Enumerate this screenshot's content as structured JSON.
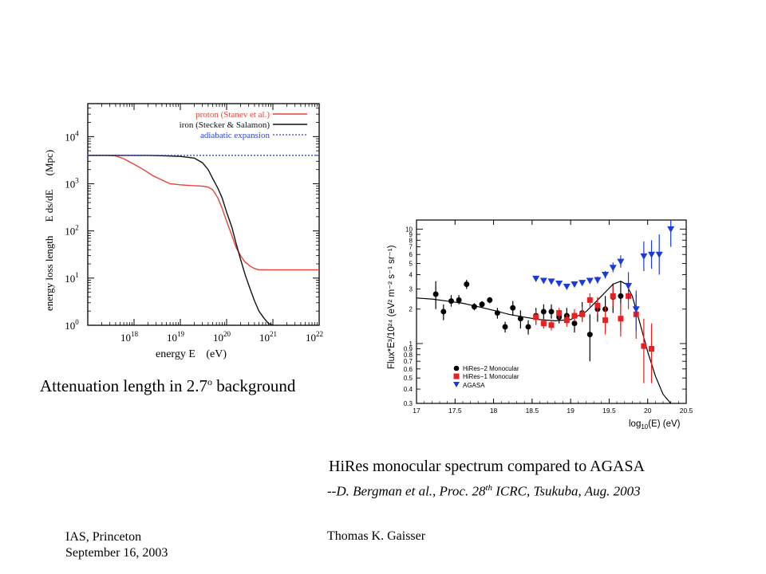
{
  "slide": {
    "caption_left_main": "Attenuation length in 2.7",
    "caption_left_sup": "o",
    "caption_left_tail": " background",
    "caption_right_title": "HiRes monocular spectrum compared to AGASA",
    "caption_right_cite_prefix": "--",
    "caption_right_cite_a": "D. Bergman et al., Proc. 28",
    "caption_right_cite_sup": "th",
    "caption_right_cite_b": " ICRC, Tsukuba, Aug. 2003",
    "footer_left_line1": "IAS, Princeton",
    "footer_left_line2": "September 16, 2003",
    "footer_center": "Thomas K. Gaisser"
  },
  "chart_data": [
    {
      "type": "line",
      "xlabel_main": "energy E",
      "xlabel_unit": "(eV)",
      "ylabel_main": "energy loss length",
      "ylabel_mid": "E ds/dE",
      "ylabel_unit": "(Mpc)",
      "xscale": "log",
      "yscale": "log",
      "xlim": [
        1e+17,
        1e+22
      ],
      "ylim": [
        1,
        50000
      ],
      "x_ticks": [
        {
          "v": 1e+18,
          "b": "10",
          "e": "18"
        },
        {
          "v": 1e+19,
          "b": "10",
          "e": "19"
        },
        {
          "v": 1e+20,
          "b": "10",
          "e": "20"
        },
        {
          "v": 1e+21,
          "b": "10",
          "e": "21"
        },
        {
          "v": 1e+22,
          "b": "10",
          "e": "22"
        }
      ],
      "y_ticks": [
        {
          "v": 1,
          "b": "10",
          "e": "0"
        },
        {
          "v": 10,
          "b": "10",
          "e": "1"
        },
        {
          "v": 100,
          "b": "10",
          "e": "2"
        },
        {
          "v": 1000,
          "b": "10",
          "e": "3"
        },
        {
          "v": 10000,
          "b": "10",
          "e": "4"
        }
      ],
      "legend_position": "top-right",
      "series": [
        {
          "name": "proton (Stanev et al.)",
          "color": "#e8413a",
          "dash": false,
          "x": [
            1e+17,
            2.5e+17,
            4e+17,
            6e+17,
            1e+18,
            1.6e+18,
            2.5e+18,
            4e+18,
            6e+18,
            1e+19,
            1.6e+19,
            2.5e+19,
            3.3e+19,
            4e+19,
            5e+19,
            6.5e+19,
            8e+19,
            1e+20,
            1.3e+20,
            1.6e+20,
            2e+20,
            2.5e+20,
            3.2e+20,
            4e+20,
            5e+20,
            7e+20,
            1e+21,
            2e+21,
            5e+21,
            1e+22
          ],
          "y": [
            4000,
            4000,
            3900,
            3400,
            2600,
            2000,
            1500,
            1200,
            1000,
            950,
            920,
            900,
            880,
            850,
            750,
            500,
            300,
            160,
            80,
            45,
            30,
            22,
            18,
            16,
            15,
            15,
            15,
            15,
            15,
            15
          ]
        },
        {
          "name": "iron (Stecker & Salamon)",
          "color": "#111111",
          "dash": false,
          "x": [
            1e+17,
            2e+17,
            5e+17,
            1e+18,
            2e+18,
            5e+18,
            1e+19,
            2e+19,
            3e+19,
            4e+19,
            5e+19,
            6.5e+19,
            8e+19,
            1e+20,
            1.3e+20,
            1.6e+20,
            2e+20,
            2.5e+20,
            3.2e+20,
            4e+20,
            5e+20,
            6.5e+20,
            8e+20,
            1e+21
          ],
          "y": [
            4000,
            4000,
            4000,
            4000,
            4000,
            3900,
            3800,
            3500,
            2800,
            2000,
            1300,
            800,
            500,
            250,
            120,
            55,
            25,
            12,
            6,
            3.3,
            2,
            1.4,
            1.1,
            1
          ]
        },
        {
          "name": "adiabatic expansion",
          "color": "#3344cc",
          "dash": true,
          "x": [
            1e+17,
            1e+22
          ],
          "y": [
            4000,
            4000
          ]
        }
      ]
    },
    {
      "type": "scatter",
      "xlabel_base": "log",
      "xlabel_sub": "10",
      "xlabel_tail": "(E) (eV)",
      "ylabel_text": "Flux*E³/10²⁴ (eV² m⁻² s⁻¹ sr⁻¹)",
      "xlim": [
        17,
        20.5
      ],
      "ylim": [
        0.3,
        12
      ],
      "yscale": "log",
      "x_ticks": [
        17,
        17.5,
        18,
        18.5,
        19,
        19.5,
        20,
        20.5
      ],
      "x_tick_labels": [
        "17",
        "17.5",
        "18",
        "18.5",
        "19",
        "19.5",
        "20",
        "20.5"
      ],
      "y_ticks": [
        0.3,
        0.4,
        0.5,
        0.6,
        0.7,
        0.8,
        0.9,
        1,
        2,
        3,
        4,
        5,
        6,
        7,
        8,
        9,
        10
      ],
      "y_tick_labels": [
        "0.3",
        "0.4",
        "0.5",
        "0.6",
        "0.7",
        "0.8",
        "0.9",
        "1",
        "2",
        "3",
        "4",
        "5",
        "6",
        "7",
        "8",
        "9",
        "10"
      ],
      "legend_position": "bottom-left",
      "series": [
        {
          "name": "HiRes−2 Monocular",
          "marker": "circle",
          "color": "#000000",
          "x": [
            17.25,
            17.35,
            17.45,
            17.55,
            17.65,
            17.75,
            17.85,
            17.95,
            18.05,
            18.15,
            18.25,
            18.35,
            18.45,
            18.55,
            18.65,
            18.75,
            18.85,
            18.95,
            19.05,
            19.15,
            19.25,
            19.35,
            19.45,
            19.55,
            19.65
          ],
          "y": [
            2.7,
            1.9,
            2.35,
            2.4,
            3.3,
            2.1,
            2.2,
            2.4,
            1.85,
            1.4,
            2.05,
            1.65,
            1.4,
            1.75,
            1.9,
            1.9,
            1.7,
            1.75,
            1.5,
            1.85,
            1.2,
            2.0,
            2.0,
            2.55,
            2.6
          ],
          "err_lo": [
            0.7,
            0.3,
            0.25,
            0.2,
            0.3,
            0.15,
            0.15,
            0.15,
            0.2,
            0.15,
            0.3,
            0.3,
            0.2,
            0.25,
            0.3,
            0.25,
            0.2,
            0.25,
            0.25,
            0.3,
            0.5,
            0.45,
            0.5,
            0.7,
            1.3
          ],
          "err_hi": [
            0.8,
            0.3,
            0.3,
            0.25,
            0.3,
            0.15,
            0.15,
            0.15,
            0.2,
            0.15,
            0.3,
            0.3,
            0.2,
            0.3,
            0.3,
            0.3,
            0.25,
            0.3,
            0.3,
            0.45,
            0.6,
            0.5,
            0.6,
            0.8,
            0.9
          ]
        },
        {
          "name": "HiRes−1 Monocular",
          "marker": "square",
          "color": "#e82020",
          "x": [
            18.55,
            18.65,
            18.75,
            18.85,
            18.95,
            19.05,
            19.15,
            19.25,
            19.35,
            19.45,
            19.55,
            19.65,
            19.75,
            19.85,
            19.95,
            20.05
          ],
          "y": [
            1.7,
            1.5,
            1.45,
            1.85,
            1.6,
            1.75,
            1.8,
            2.4,
            2.15,
            1.6,
            2.6,
            1.65,
            2.6,
            1.8,
            0.95,
            0.9
          ],
          "err_lo": [
            0.25,
            0.15,
            0.15,
            0.2,
            0.2,
            0.2,
            0.25,
            0.3,
            0.35,
            0.4,
            0.5,
            0.5,
            0.6,
            0.7,
            0.5,
            0.45
          ],
          "err_hi": [
            0.25,
            0.15,
            0.15,
            0.2,
            0.2,
            0.25,
            0.3,
            0.35,
            0.4,
            0.5,
            0.6,
            0.6,
            0.8,
            0.9,
            0.7,
            0.6
          ]
        },
        {
          "name": "AGASA",
          "marker": "triangle-down",
          "color": "#1a3adc",
          "x": [
            18.55,
            18.65,
            18.75,
            18.85,
            18.95,
            19.05,
            19.15,
            19.25,
            19.35,
            19.45,
            19.55,
            19.65,
            19.75,
            19.85,
            19.95,
            20.05,
            20.15,
            20.3
          ],
          "y": [
            3.7,
            3.55,
            3.5,
            3.35,
            3.15,
            3.3,
            3.4,
            3.55,
            3.6,
            4.0,
            4.6,
            5.2,
            3.2,
            2.0,
            5.8,
            6.0,
            6.0,
            10.0
          ],
          "err_lo": [
            0.15,
            0.15,
            0.15,
            0.15,
            0.15,
            0.2,
            0.2,
            0.2,
            0.25,
            0.3,
            0.4,
            0.6,
            0.8,
            0.7,
            1.5,
            1.5,
            2.0,
            3.0
          ],
          "err_hi": [
            0.15,
            0.15,
            0.15,
            0.15,
            0.15,
            0.2,
            0.2,
            0.2,
            0.25,
            0.3,
            0.5,
            0.7,
            1.0,
            0.9,
            2.0,
            2.0,
            3.0,
            6.0
          ]
        }
      ],
      "fit_curve": {
        "x": [
          17.0,
          17.2,
          17.4,
          17.6,
          17.8,
          18.0,
          18.2,
          18.4,
          18.6,
          18.8,
          19.0,
          19.2,
          19.4,
          19.55,
          19.65,
          19.72,
          19.8,
          19.9,
          20.0,
          20.1,
          20.2,
          20.3
        ],
        "y": [
          2.5,
          2.45,
          2.35,
          2.25,
          2.1,
          1.95,
          1.8,
          1.7,
          1.62,
          1.58,
          1.62,
          1.9,
          2.6,
          3.3,
          3.5,
          3.3,
          2.6,
          1.5,
          0.85,
          0.52,
          0.36,
          0.28
        ]
      }
    }
  ]
}
